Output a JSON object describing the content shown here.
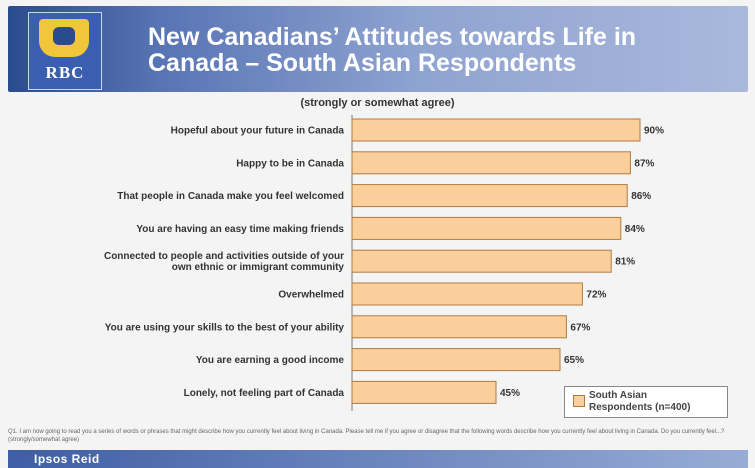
{
  "header": {
    "logo_text": "RBC",
    "title_line1": "New Canadians’ Attitudes towards Life in",
    "title_line2": "Canada – South Asian Respondents"
  },
  "chart_data": {
    "type": "bar",
    "orientation": "horizontal",
    "subtitle": "(strongly or somewhat agree)",
    "categories": [
      [
        "Hopeful about your future in Canada"
      ],
      [
        "Happy to be in Canada"
      ],
      [
        "That people in Canada make you feel welcomed"
      ],
      [
        "You are having an easy time making friends"
      ],
      [
        "Connected to people and activities outside of your",
        "own ethnic or immigrant community"
      ],
      [
        "Overwhelmed"
      ],
      [
        "You are using your skills to the best of your ability"
      ],
      [
        "You are earning a good income"
      ],
      [
        "Lonely, not feeling part of Canada"
      ]
    ],
    "series": [
      {
        "name": "South Asian Respondents (n=400)",
        "values": [
          90,
          87,
          86,
          84,
          81,
          72,
          67,
          65,
          45
        ],
        "color": "#fbcf9c"
      }
    ],
    "value_labels": [
      "90%",
      "87%",
      "86%",
      "84%",
      "81%",
      "72%",
      "67%",
      "65%",
      "45%"
    ],
    "xlim": [
      0,
      100
    ],
    "legend_position": "bottom-right",
    "grid": false
  },
  "legend": {
    "line1": "South Asian",
    "line2": "Respondents (n=400)"
  },
  "footnote": "Q1. I am now going to read you a series of words or phrases that might describe how you currently feel about living in Canada. Please tell me if you agree or disagree that the following words describe how you currently feel about living in Canada. Do you currently feel...? (strongly/somewhat agree)",
  "footer": {
    "brand": "Ipsos Reid"
  }
}
